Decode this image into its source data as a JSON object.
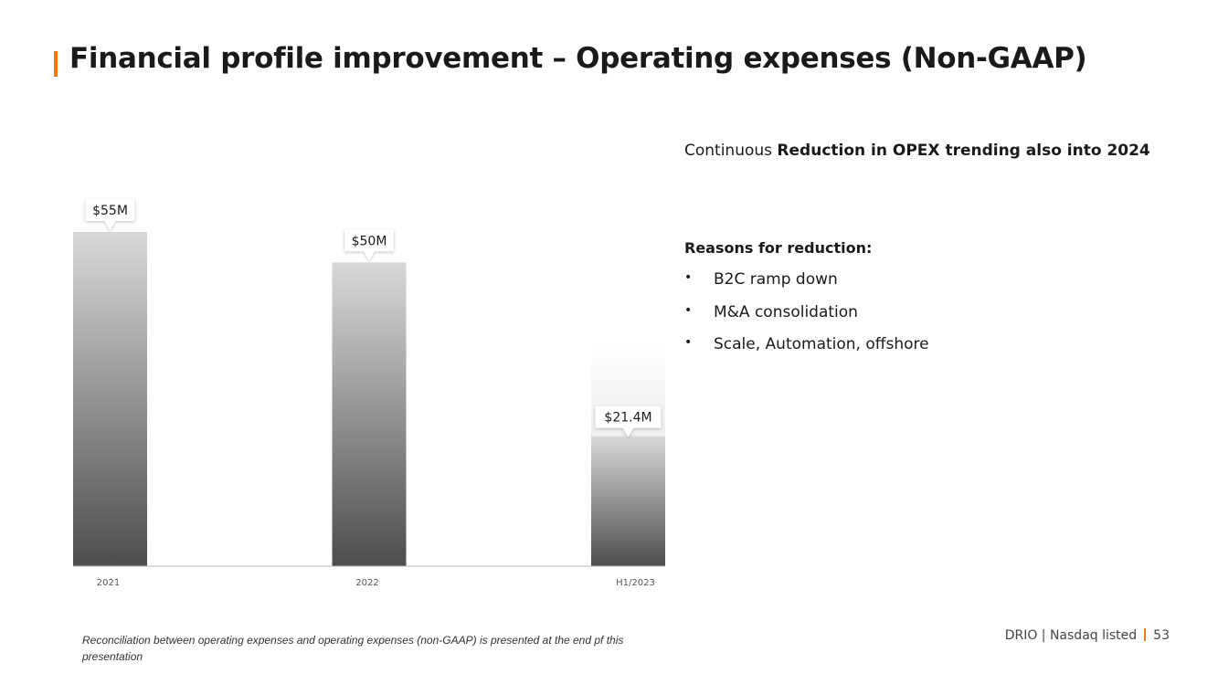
{
  "slide": {
    "title": "Financial profile improvement – Operating expenses (Non-GAAP)",
    "lead_prefix": "Continuous ",
    "lead_bold": "Reduction in OPEX trending also into 2024",
    "reasons_title": "Reasons for reduction:",
    "reasons": [
      "B2C ramp down",
      "M&A consolidation",
      "Scale, Automation, offshore"
    ],
    "bullet": "•",
    "footnote": "Reconciliation between operating expenses and operating expenses (non-GAAP) is presented at the end pf this presentation",
    "footer_text": "DRIO | Nasdaq listed",
    "page_number": "53"
  },
  "chart_data": {
    "type": "bar",
    "categories": [
      "2021",
      "2022",
      "H1/2023"
    ],
    "values": [
      55,
      50,
      21.4
    ],
    "data_labels": [
      "$55M",
      "$50M",
      "$21.4M"
    ],
    "unit": "$M",
    "ylim": [
      0,
      55
    ],
    "grid": false,
    "legend": "none",
    "colors": {
      "bar_top": "#d9d9d9",
      "bar_bottom": "#4d4d4d",
      "axis": "#bfbfbf",
      "accent": "#f07a1a"
    }
  }
}
